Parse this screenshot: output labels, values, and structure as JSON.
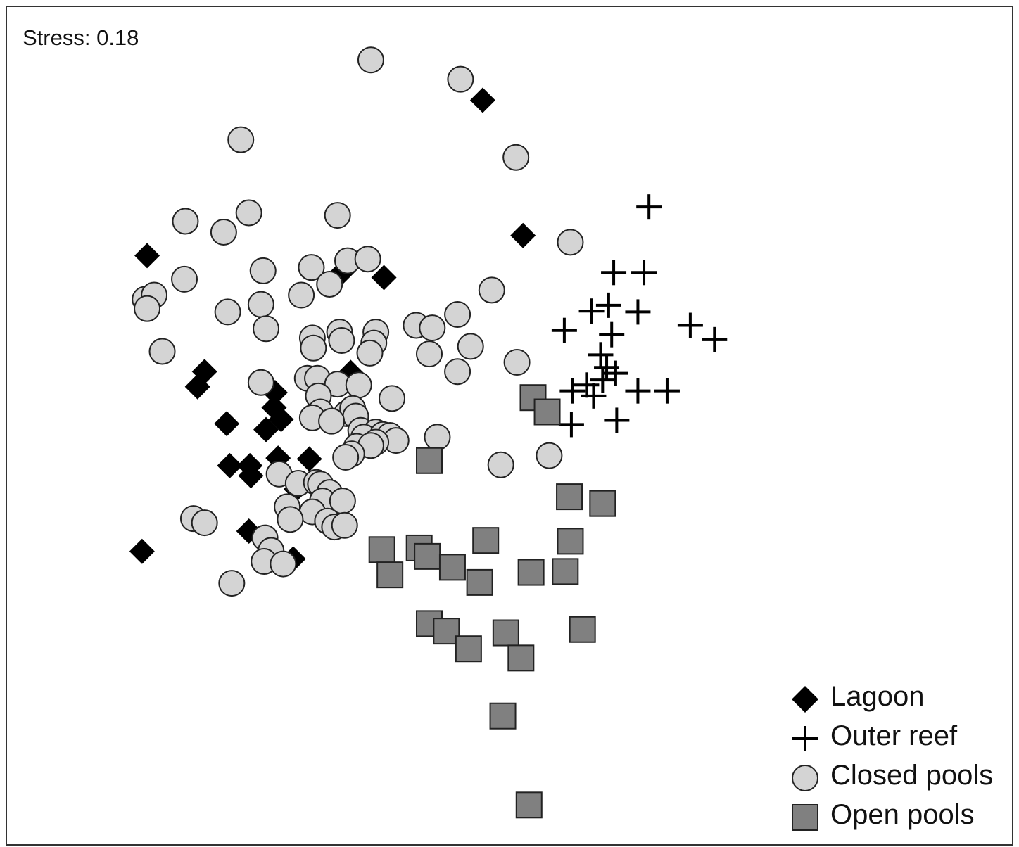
{
  "chart_data": {
    "type": "scatter",
    "title": "",
    "xlabel": "",
    "ylabel": "",
    "xlim": [
      0,
      100
    ],
    "ylim": [
      0,
      100
    ],
    "grid": false,
    "axes_visible": false,
    "annotation": "Stress: 0.18",
    "legend_position": "bottom-right",
    "series": [
      {
        "name": "Lagoon",
        "marker": "diamond",
        "color": "#000000",
        "points": [
          [
            47.2,
            88.9
          ],
          [
            51.2,
            72.8
          ],
          [
            13.9,
            70.4
          ],
          [
            37.4,
            67.8
          ],
          [
            33.4,
            68.6
          ],
          [
            19.6,
            56.6
          ],
          [
            18.9,
            54.8
          ],
          [
            34.1,
            56.5
          ],
          [
            26.6,
            54.1
          ],
          [
            26.5,
            52.3
          ],
          [
            27.2,
            50.9
          ],
          [
            21.8,
            50.4
          ],
          [
            25.7,
            49.7
          ],
          [
            22.1,
            45.4
          ],
          [
            24.1,
            45.4
          ],
          [
            26.9,
            46.3
          ],
          [
            30.0,
            46.2
          ],
          [
            24.2,
            44.2
          ],
          [
            28.7,
            42.6
          ],
          [
            24.0,
            37.6
          ],
          [
            13.4,
            35.2
          ],
          [
            28.4,
            34.3
          ]
        ]
      },
      {
        "name": "Outer reef",
        "marker": "plus",
        "color": "#000000",
        "points": [
          [
            63.7,
            76.2
          ],
          [
            60.2,
            68.4
          ],
          [
            63.2,
            68.4
          ],
          [
            59.7,
            64.5
          ],
          [
            62.6,
            63.7
          ],
          [
            58.0,
            63.8
          ],
          [
            55.3,
            61.5
          ],
          [
            60.0,
            61.0
          ],
          [
            67.8,
            62.1
          ],
          [
            70.2,
            60.4
          ],
          [
            58.9,
            58.6
          ],
          [
            59.5,
            57.1
          ],
          [
            60.4,
            56.4
          ],
          [
            59.1,
            55.6
          ],
          [
            57.5,
            55.0
          ],
          [
            56.1,
            54.3
          ],
          [
            58.2,
            53.7
          ],
          [
            62.6,
            54.3
          ],
          [
            65.5,
            54.3
          ],
          [
            56.0,
            50.3
          ],
          [
            60.5,
            50.8
          ]
        ]
      },
      {
        "name": "Closed pools",
        "marker": "circle",
        "color": "#d4d4d4",
        "points": [
          [
            36.1,
            93.7
          ],
          [
            45.0,
            91.4
          ],
          [
            23.2,
            84.2
          ],
          [
            50.5,
            82.1
          ],
          [
            17.7,
            74.5
          ],
          [
            24.0,
            75.5
          ],
          [
            21.5,
            73.2
          ],
          [
            32.8,
            75.2
          ],
          [
            55.9,
            72.0
          ],
          [
            30.2,
            69.0
          ],
          [
            25.4,
            68.6
          ],
          [
            33.8,
            69.8
          ],
          [
            35.8,
            70.0
          ],
          [
            17.6,
            67.6
          ],
          [
            13.7,
            65.2
          ],
          [
            14.6,
            65.7
          ],
          [
            13.9,
            64.1
          ],
          [
            29.2,
            65.7
          ],
          [
            32.0,
            67.0
          ],
          [
            25.2,
            64.6
          ],
          [
            21.9,
            63.7
          ],
          [
            48.1,
            66.3
          ],
          [
            25.7,
            61.7
          ],
          [
            44.7,
            63.4
          ],
          [
            40.6,
            62.1
          ],
          [
            42.2,
            61.8
          ],
          [
            30.3,
            60.6
          ],
          [
            33.0,
            61.3
          ],
          [
            36.6,
            61.3
          ],
          [
            33.2,
            60.3
          ],
          [
            30.4,
            59.4
          ],
          [
            36.4,
            60.0
          ],
          [
            15.4,
            59.0
          ],
          [
            46.0,
            59.6
          ],
          [
            41.9,
            58.7
          ],
          [
            50.6,
            57.7
          ],
          [
            36.0,
            58.8
          ],
          [
            44.7,
            56.6
          ],
          [
            25.2,
            55.3
          ],
          [
            29.8,
            55.8
          ],
          [
            30.8,
            55.8
          ],
          [
            32.8,
            55.1
          ],
          [
            34.9,
            55.0
          ],
          [
            38.2,
            53.4
          ],
          [
            30.9,
            53.7
          ],
          [
            31.1,
            51.8
          ],
          [
            33.7,
            51.6
          ],
          [
            34.3,
            52.2
          ],
          [
            34.6,
            51.3
          ],
          [
            30.3,
            51.1
          ],
          [
            32.2,
            50.7
          ],
          [
            35.1,
            49.6
          ],
          [
            36.6,
            49.4
          ],
          [
            35.4,
            48.8
          ],
          [
            37.3,
            49.1
          ],
          [
            38.0,
            49.0
          ],
          [
            38.6,
            48.4
          ],
          [
            36.6,
            48.2
          ],
          [
            42.7,
            48.8
          ],
          [
            34.7,
            47.7
          ],
          [
            36.1,
            47.8
          ],
          [
            34.2,
            46.8
          ],
          [
            33.6,
            46.4
          ],
          [
            49.0,
            45.5
          ],
          [
            53.8,
            46.6
          ],
          [
            27.0,
            44.4
          ],
          [
            28.9,
            43.3
          ],
          [
            30.7,
            43.4
          ],
          [
            31.1,
            43.2
          ],
          [
            32.0,
            42.2
          ],
          [
            31.3,
            41.2
          ],
          [
            33.3,
            41.2
          ],
          [
            27.8,
            40.5
          ],
          [
            30.3,
            39.9
          ],
          [
            18.5,
            39.1
          ],
          [
            19.6,
            38.6
          ],
          [
            28.1,
            39.0
          ],
          [
            31.8,
            38.8
          ],
          [
            32.5,
            38.1
          ],
          [
            33.5,
            38.3
          ],
          [
            25.6,
            36.8
          ],
          [
            26.2,
            35.3
          ],
          [
            25.5,
            34.0
          ],
          [
            27.4,
            33.7
          ],
          [
            22.3,
            31.4
          ]
        ]
      },
      {
        "name": "Open pools",
        "marker": "square",
        "color": "#808080",
        "points": [
          [
            52.2,
            53.5
          ],
          [
            53.6,
            51.8
          ],
          [
            41.9,
            46.0
          ],
          [
            55.8,
            41.7
          ],
          [
            59.1,
            40.9
          ],
          [
            37.2,
            35.4
          ],
          [
            40.9,
            35.6
          ],
          [
            41.7,
            34.6
          ],
          [
            47.5,
            36.5
          ],
          [
            55.9,
            36.4
          ],
          [
            44.2,
            33.3
          ],
          [
            38.0,
            32.4
          ],
          [
            52.0,
            32.7
          ],
          [
            55.4,
            32.8
          ],
          [
            46.9,
            31.5
          ],
          [
            41.9,
            26.6
          ],
          [
            43.6,
            25.7
          ],
          [
            49.5,
            25.5
          ],
          [
            57.1,
            25.9
          ],
          [
            45.8,
            23.6
          ],
          [
            51.0,
            22.5
          ],
          [
            49.2,
            15.6
          ],
          [
            51.8,
            5.0
          ]
        ]
      }
    ]
  }
}
